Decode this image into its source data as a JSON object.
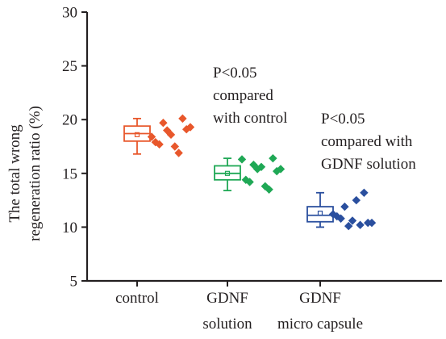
{
  "chart_data": {
    "type": "box",
    "ylabel": [
      "The total wrong",
      "regeneration ratio (%)"
    ],
    "ylim": [
      5,
      30
    ],
    "yticks": [
      5,
      10,
      15,
      20,
      25,
      30
    ],
    "grid": false,
    "categories": [
      [
        "control"
      ],
      [
        "GDNF",
        "solution"
      ],
      [
        "GDNF",
        "micro capsule"
      ]
    ],
    "colors": [
      "#e8572b",
      "#1fa855",
      "#2a4f9e"
    ],
    "groups": [
      {
        "box": {
          "min": 16.8,
          "q1": 18.0,
          "median": 18.7,
          "q3": 19.4,
          "max": 20.1,
          "mean": 18.6
        },
        "points": [
          18.4,
          17.9,
          17.7,
          19.7,
          19.0,
          18.6,
          17.5,
          16.9,
          20.1,
          19.1,
          19.3
        ]
      },
      {
        "box": {
          "min": 13.4,
          "q1": 14.4,
          "median": 15.0,
          "q3": 15.7,
          "max": 16.4,
          "mean": 15.0
        },
        "points": [
          16.3,
          14.4,
          14.2,
          15.8,
          15.4,
          15.6,
          13.8,
          13.5,
          16.4,
          15.2,
          15.4
        ]
      },
      {
        "box": {
          "min": 10.0,
          "q1": 10.5,
          "median": 11.1,
          "q3": 11.9,
          "max": 13.2,
          "mean": 11.3
        },
        "points": [
          11.2,
          11.0,
          10.8,
          11.9,
          10.1,
          10.6,
          12.5,
          10.2,
          13.2,
          10.4,
          10.4
        ]
      }
    ],
    "annotations": [
      [
        "P<0.05",
        "compared",
        "with control"
      ],
      [
        "P<0.05",
        "compared with",
        "GDNF solution"
      ]
    ]
  }
}
